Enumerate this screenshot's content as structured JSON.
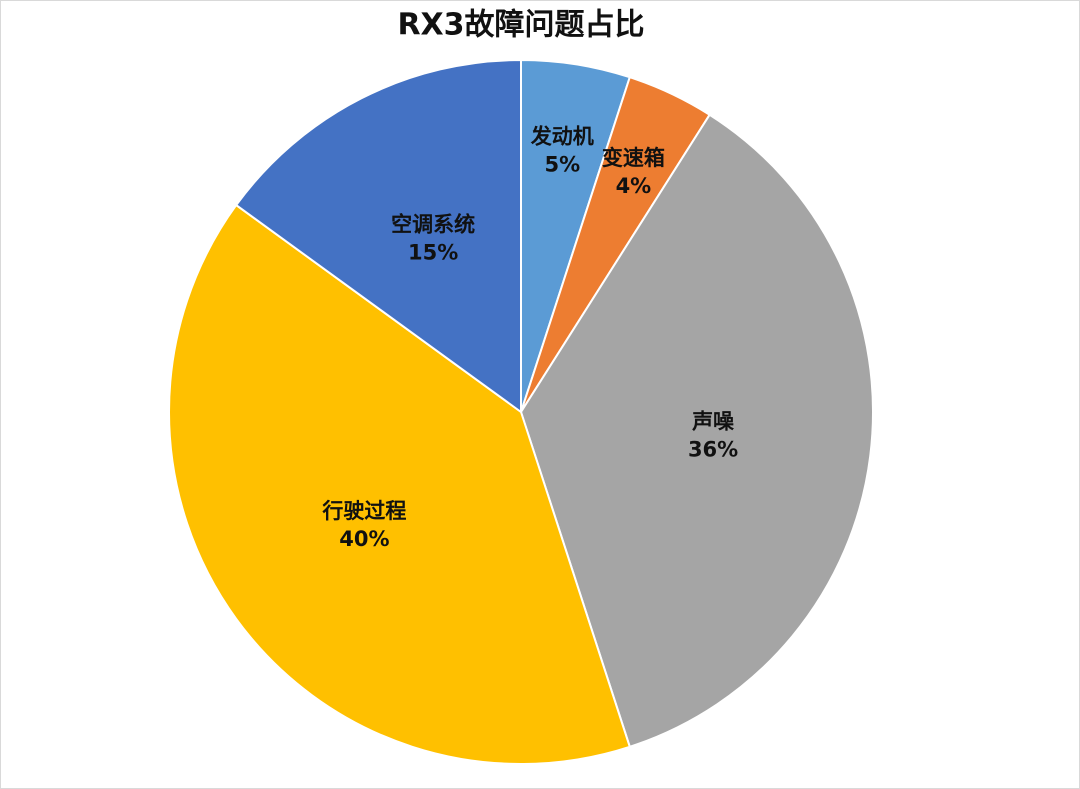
{
  "chart_data": {
    "type": "pie",
    "title": "RX3故障问题占比",
    "categories": [
      "发动机",
      "变速箱",
      "声噪",
      "行驶过程",
      "空调系统"
    ],
    "values": [
      5,
      4,
      36,
      40,
      15
    ],
    "value_labels": [
      "5%",
      "4%",
      "36%",
      "40%",
      "15%"
    ],
    "colors": [
      "#5b9bd5",
      "#ed7d31",
      "#a5a5a5",
      "#ffc000",
      "#4472c4"
    ]
  }
}
